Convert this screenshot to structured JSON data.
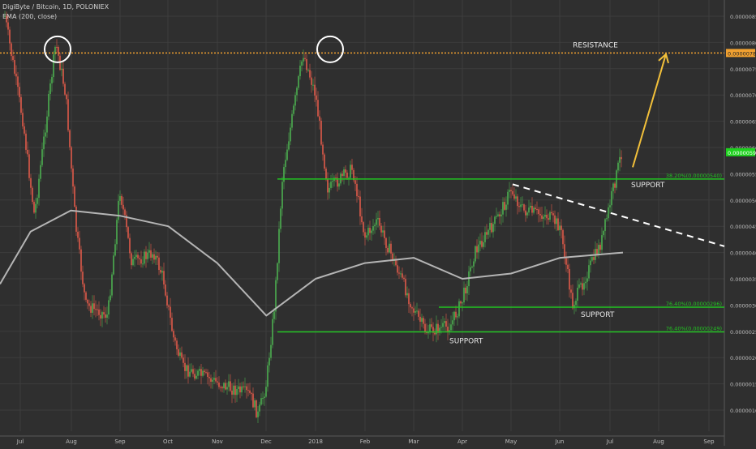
{
  "header": {
    "symbol_line": "DigiByte / Bitcoin, 1D, POLONIEX",
    "indicator_line": "EMA (200, close)"
  },
  "colors": {
    "background": "#2f2f2f",
    "grid": "#3d3d3d",
    "up_candle": "#4caf50",
    "down_candle": "#e05a4a",
    "ema": "#b5b5b5",
    "support_line": "#22c322",
    "resistance_line": "#f0a030",
    "arrow": "#f2c03a",
    "trendline": "#ffffff",
    "circle": "#ffffff",
    "axis_text": "#bdbdbd",
    "price_tag": "#1ed21e"
  },
  "chart_data": {
    "type": "candlestick",
    "title": "DigiByte / Bitcoin, 1D, POLONIEX",
    "indicator": "EMA (200, close)",
    "x_ticks": [
      "Jul",
      "Aug",
      "Sep",
      "Oct",
      "Nov",
      "Dec",
      "2018",
      "Feb",
      "Mar",
      "Apr",
      "May",
      "Jun",
      "Jul",
      "Aug",
      "Sep"
    ],
    "y_ticks": [
      "0.00000850",
      "0.00000800",
      "0.00000750",
      "0.00000700",
      "0.00000650",
      "0.00000600",
      "0.00000550",
      "0.00000500",
      "0.00000450",
      "0.00000400",
      "0.00000350",
      "0.00000300",
      "0.00000250",
      "0.00000200",
      "0.00000150",
      "0.00000100"
    ],
    "ylim": [
      7e-07,
      8.7e-06
    ],
    "current_price_label": "0.00000591",
    "resistance": {
      "label": "RESISTANCE",
      "value": 7.8e-06,
      "value_label": "0.00000780"
    },
    "levels": [
      {
        "name": "fib-38",
        "value": 5.4e-06,
        "label": "38.20%(0.00000540)",
        "annotation": "SUPPORT"
      },
      {
        "name": "fib-76-upper",
        "value": 2.96e-06,
        "label": "76.40%(0.00000296)",
        "annotation": "SUPPORT"
      },
      {
        "name": "fib-76-lower",
        "value": 2.49e-06,
        "label": "76.40%(0.00000249)",
        "annotation": "SUPPORT"
      }
    ],
    "price_path": [
      [
        "Jul",
        8.5e-06
      ],
      [
        "Jul",
        6.5e-06
      ],
      [
        "Jul",
        4.7e-06
      ],
      [
        "Aug",
        8e-06
      ],
      [
        "Aug",
        7e-06
      ],
      [
        "Aug",
        4.5e-06
      ],
      [
        "Aug",
        3e-06
      ],
      [
        "Sep",
        2.8e-06
      ],
      [
        "Sep",
        5.2e-06
      ],
      [
        "Sep",
        3.8e-06
      ],
      [
        "Oct",
        4e-06
      ],
      [
        "Oct",
        3.5e-06
      ],
      [
        "Oct",
        2.4e-06
      ],
      [
        "Oct",
        1.8e-06
      ],
      [
        "Nov",
        1.6e-06
      ],
      [
        "Nov",
        1.45e-06
      ],
      [
        "Dec",
        1.3e-06
      ],
      [
        "Dec",
        9e-07
      ],
      [
        "Dec",
        1.5e-06
      ],
      [
        "Dec",
        3e-06
      ],
      [
        "Dec",
        5.5e-06
      ],
      [
        "2018",
        7.8e-06
      ],
      [
        "2018",
        7e-06
      ],
      [
        "2018",
        5.2e-06
      ],
      [
        "Feb",
        5.6e-06
      ],
      [
        "Feb",
        4.3e-06
      ],
      [
        "Feb",
        4.6e-06
      ],
      [
        "Mar",
        3.5e-06
      ],
      [
        "Mar",
        2.9e-06
      ],
      [
        "Mar",
        2.5e-06
      ],
      [
        "Apr",
        2.6e-06
      ],
      [
        "Apr",
        3.1e-06
      ],
      [
        "Apr",
        4e-06
      ],
      [
        "May",
        4.7e-06
      ],
      [
        "May",
        5.2e-06
      ],
      [
        "May",
        4.8e-06
      ],
      [
        "Jun",
        4.7e-06
      ],
      [
        "Jun",
        4.5e-06
      ],
      [
        "Jun",
        3e-06
      ],
      [
        "Jul",
        4.2e-06
      ],
      [
        "Jul",
        5.9e-06
      ]
    ],
    "ema200": [
      [
        "Jul",
        3.4e-06
      ],
      [
        "Jul",
        4.4e-06
      ],
      [
        "Aug",
        4.8e-06
      ],
      [
        "Sep",
        4.7e-06
      ],
      [
        "Oct",
        4.5e-06
      ],
      [
        "Nov",
        3.8e-06
      ],
      [
        "Dec",
        2.8e-06
      ],
      [
        "2018",
        3.5e-06
      ],
      [
        "Feb",
        3.8e-06
      ],
      [
        "Mar",
        3.9e-06
      ],
      [
        "Apr",
        3.5e-06
      ],
      [
        "May",
        3.6e-06
      ],
      [
        "Jun",
        3.9e-06
      ],
      [
        "Jul",
        4e-06
      ]
    ],
    "annotations": [
      {
        "type": "circle",
        "name": "first-top-circle",
        "at": [
          "Aug",
          7.9e-06
        ]
      },
      {
        "type": "circle",
        "name": "second-top-circle",
        "at": [
          "2018",
          7.9e-06
        ]
      },
      {
        "type": "dashed-trendline",
        "from": [
          "May",
          5.3e-06
        ],
        "to": [
          "Sep",
          4.15e-06
        ]
      },
      {
        "type": "arrow",
        "from": [
          "Jul",
          5.5e-06
        ],
        "to": [
          "Aug",
          7.7e-06
        ]
      }
    ]
  }
}
